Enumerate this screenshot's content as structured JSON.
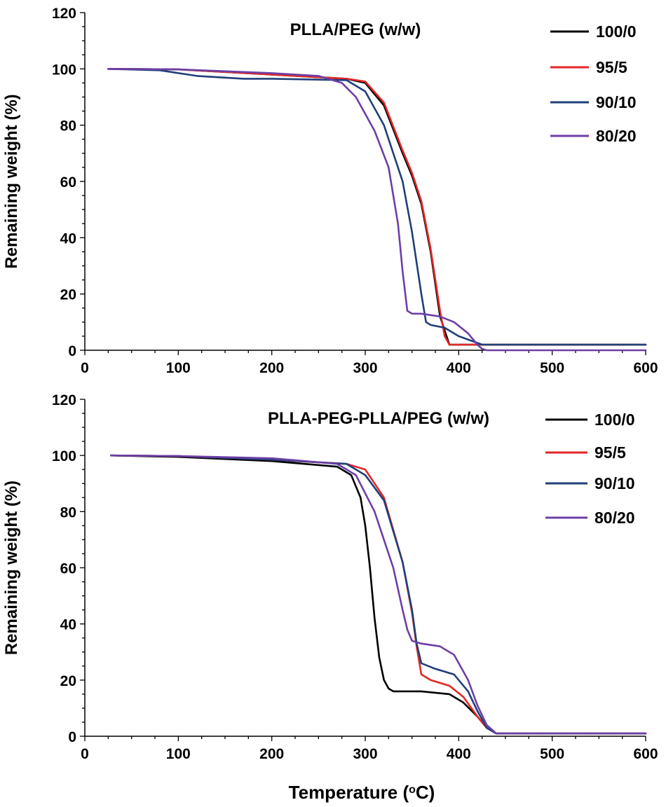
{
  "chart_data": [
    {
      "type": "line",
      "title": "PLLA/PEG (w/w)",
      "xlabel": "",
      "ylabel": "Remaining weight (%)",
      "xlim": [
        0,
        600
      ],
      "ylim": [
        0,
        120
      ],
      "xticks": [
        "0",
        "100",
        "200",
        "300",
        "400",
        "500",
        "600"
      ],
      "yticks": [
        "0",
        "20",
        "40",
        "60",
        "80",
        "100",
        "120"
      ],
      "grid": false,
      "legend_position": "top-right",
      "series": [
        {
          "name": "100/0",
          "color": "#000000",
          "x": [
            25,
            100,
            200,
            280,
            300,
            320,
            340,
            350,
            360,
            370,
            380,
            390,
            400,
            500,
            600
          ],
          "y": [
            100,
            99.8,
            98,
            96.5,
            95,
            87,
            70,
            62,
            52,
            35,
            12,
            2,
            2,
            2,
            2
          ]
        },
        {
          "name": "95/5",
          "color": "#e32626",
          "x": [
            25,
            100,
            200,
            280,
            300,
            320,
            340,
            350,
            360,
            370,
            380,
            385,
            390,
            400,
            500,
            580
          ],
          "y": [
            100,
            99.8,
            98,
            96.5,
            95.5,
            88,
            71,
            63,
            53,
            36,
            14,
            5,
            2,
            2,
            2,
            2
          ]
        },
        {
          "name": "90/10",
          "color": "#1f3f7a",
          "x": [
            25,
            80,
            120,
            170,
            200,
            280,
            300,
            320,
            340,
            350,
            360,
            365,
            370,
            385,
            400,
            425,
            500,
            600
          ],
          "y": [
            100,
            99.5,
            97.5,
            96.5,
            96.5,
            96,
            92,
            80,
            60,
            42,
            20,
            10,
            9,
            8,
            5,
            2,
            2,
            2
          ]
        },
        {
          "name": "80/20",
          "color": "#6d3fa6",
          "x": [
            25,
            100,
            200,
            250,
            275,
            290,
            310,
            325,
            335,
            340,
            345,
            350,
            360,
            380,
            395,
            410,
            420,
            425,
            430,
            500,
            600
          ],
          "y": [
            100,
            99.8,
            98.5,
            97.5,
            95,
            90,
            78,
            65,
            45,
            28,
            14,
            13,
            13,
            12,
            10,
            6,
            2,
            0.5,
            0,
            0,
            0
          ]
        }
      ]
    },
    {
      "type": "line",
      "title": "PLLA-PEG-PLLA/PEG (w/w)",
      "xlabel": "Temperature (°C)",
      "ylabel": "Remaining weight (%)",
      "xlim": [
        0,
        600
      ],
      "ylim": [
        0,
        120
      ],
      "xticks": [
        "0",
        "100",
        "200",
        "300",
        "400",
        "500",
        "600"
      ],
      "yticks": [
        "0",
        "20",
        "40",
        "60",
        "80",
        "100",
        "120"
      ],
      "grid": false,
      "legend_position": "top-right",
      "series": [
        {
          "name": "100/0",
          "color": "#000000",
          "x": [
            28,
            100,
            200,
            270,
            285,
            295,
            300,
            305,
            310,
            315,
            320,
            325,
            330,
            360,
            390,
            405,
            420,
            430,
            440,
            500,
            600
          ],
          "y": [
            100,
            99.5,
            98,
            96,
            93,
            85,
            75,
            60,
            42,
            28,
            20,
            17,
            16,
            16,
            15,
            12,
            7,
            3,
            1,
            1,
            1
          ]
        },
        {
          "name": "95/5",
          "color": "#e32626",
          "x": [
            28,
            100,
            200,
            280,
            300,
            320,
            340,
            350,
            355,
            360,
            370,
            390,
            405,
            420,
            430,
            440,
            500,
            600
          ],
          "y": [
            100,
            99.8,
            98.5,
            97,
            95,
            85,
            62,
            44,
            32,
            22,
            20,
            18,
            14,
            7,
            3,
            1,
            1,
            1
          ]
        },
        {
          "name": "90/10",
          "color": "#1f3f7a",
          "x": [
            28,
            100,
            200,
            280,
            300,
            320,
            340,
            350,
            355,
            360,
            375,
            395,
            410,
            420,
            430,
            440,
            500,
            600
          ],
          "y": [
            100,
            99.8,
            98.5,
            97,
            93,
            84,
            62,
            45,
            33,
            26,
            24,
            22,
            16,
            9,
            3,
            1,
            1,
            1
          ]
        },
        {
          "name": "80/20",
          "color": "#6d3fa6",
          "x": [
            28,
            100,
            200,
            270,
            290,
            310,
            330,
            340,
            345,
            350,
            360,
            380,
            395,
            410,
            420,
            430,
            440,
            500,
            600
          ],
          "y": [
            100,
            99.8,
            99,
            97,
            93,
            80,
            60,
            45,
            38,
            34,
            33,
            32,
            29,
            20,
            11,
            4,
            1,
            1,
            1
          ]
        }
      ]
    }
  ]
}
